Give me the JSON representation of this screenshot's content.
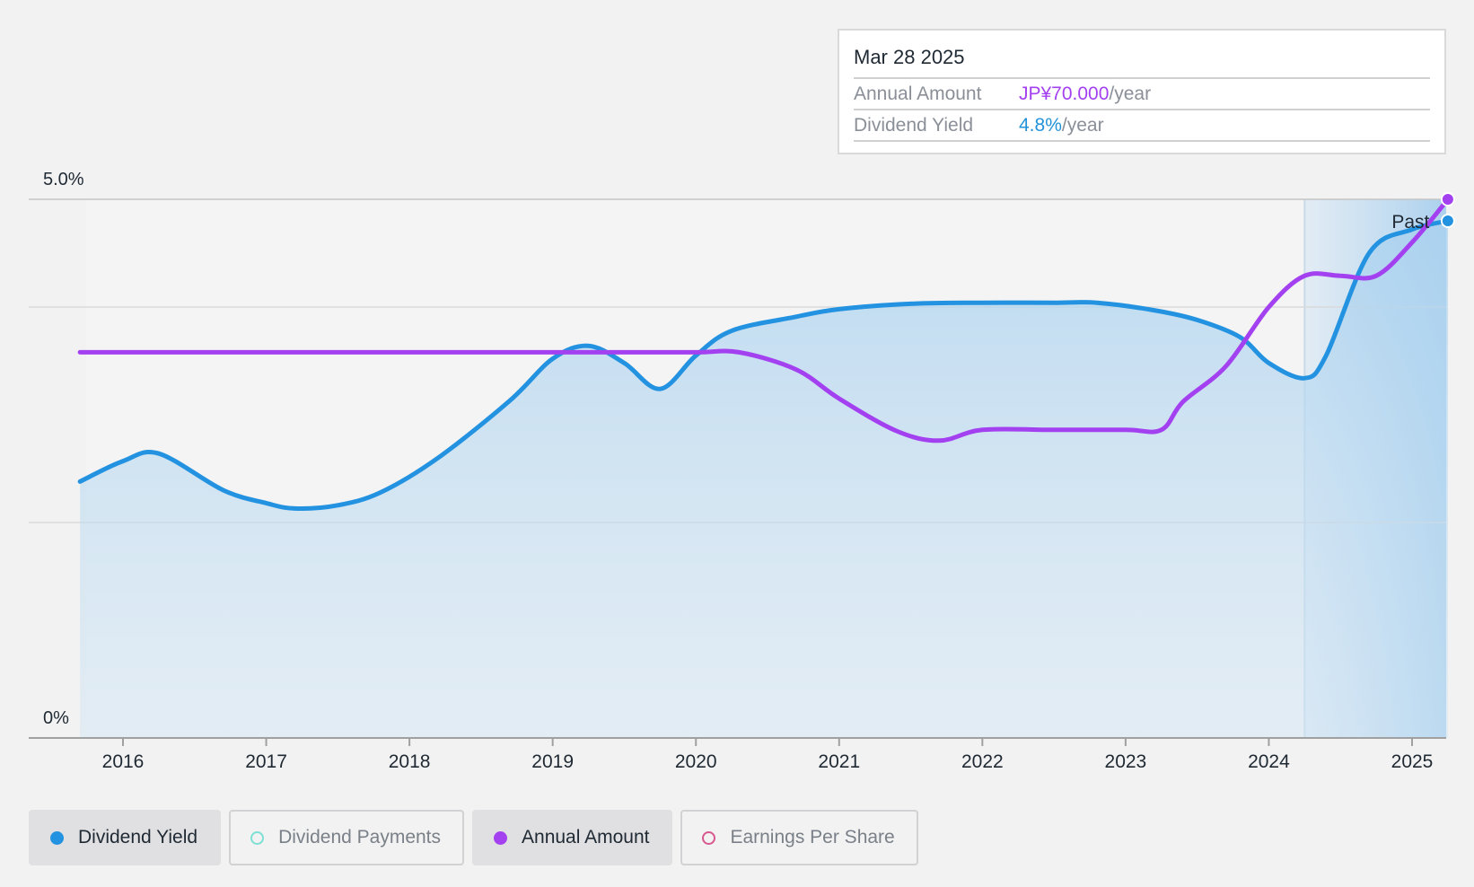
{
  "tooltip": {
    "date": "Mar 28 2025",
    "rows": [
      {
        "label": "Annual Amount",
        "value": "JP¥70.000",
        "unit": "/year"
      },
      {
        "label": "Dividend Yield",
        "value": "4.8%",
        "unit": "/year"
      }
    ]
  },
  "legend": [
    {
      "label": "Dividend Yield",
      "color": "#2392e0",
      "active": true,
      "filled": true
    },
    {
      "label": "Dividend Payments",
      "color": "#7ee0d4",
      "active": false,
      "filled": false
    },
    {
      "label": "Annual Amount",
      "color": "#a341f0",
      "active": true,
      "filled": true
    },
    {
      "label": "Earnings Per Share",
      "color": "#d9578f",
      "active": false,
      "filled": false
    }
  ],
  "chart_data": {
    "type": "line",
    "title": "",
    "xlabel": "",
    "ylabel": "",
    "y_tick_labels": [
      "5.0%",
      "0%"
    ],
    "ylim": [
      0,
      5.0
    ],
    "x_tick_labels": [
      "2016",
      "2017",
      "2018",
      "2019",
      "2020",
      "2021",
      "2022",
      "2023",
      "2024",
      "2025"
    ],
    "xlim": [
      2015.6,
      2025.25
    ],
    "grid": true,
    "past_label": "Past",
    "past_region_start": 2024.25,
    "series": [
      {
        "name": "Dividend Yield",
        "color": "#2392e0",
        "area": true,
        "x": [
          2015.7,
          2016.0,
          2016.25,
          2016.7,
          2017.0,
          2017.2,
          2017.5,
          2017.8,
          2018.2,
          2018.7,
          2019.0,
          2019.25,
          2019.5,
          2019.75,
          2020.0,
          2020.25,
          2020.7,
          2021.0,
          2021.5,
          2022.0,
          2022.5,
          2022.8,
          2023.2,
          2023.5,
          2023.8,
          2024.0,
          2024.25,
          2024.4,
          2024.7,
          2025.0,
          2025.25
        ],
        "values": [
          2.38,
          2.57,
          2.64,
          2.3,
          2.18,
          2.13,
          2.16,
          2.28,
          2.6,
          3.13,
          3.52,
          3.64,
          3.48,
          3.24,
          3.55,
          3.78,
          3.91,
          3.98,
          4.03,
          4.04,
          4.04,
          4.04,
          3.97,
          3.88,
          3.72,
          3.48,
          3.34,
          3.55,
          4.5,
          4.72,
          4.8
        ]
      },
      {
        "name": "Annual Amount",
        "color": "#a341f0",
        "area": false,
        "x": [
          2015.7,
          2016.5,
          2017.5,
          2018.5,
          2019.5,
          2020.0,
          2020.3,
          2020.7,
          2021.0,
          2021.4,
          2021.7,
          2022.0,
          2022.5,
          2023.0,
          2023.25,
          2023.4,
          2023.7,
          2024.0,
          2024.25,
          2024.5,
          2024.75,
          2025.0,
          2025.25
        ],
        "values": [
          3.58,
          3.58,
          3.58,
          3.58,
          3.58,
          3.58,
          3.58,
          3.42,
          3.15,
          2.85,
          2.76,
          2.86,
          2.86,
          2.86,
          2.86,
          3.12,
          3.45,
          4.0,
          4.29,
          4.29,
          4.29,
          4.6,
          5.0
        ]
      }
    ]
  }
}
